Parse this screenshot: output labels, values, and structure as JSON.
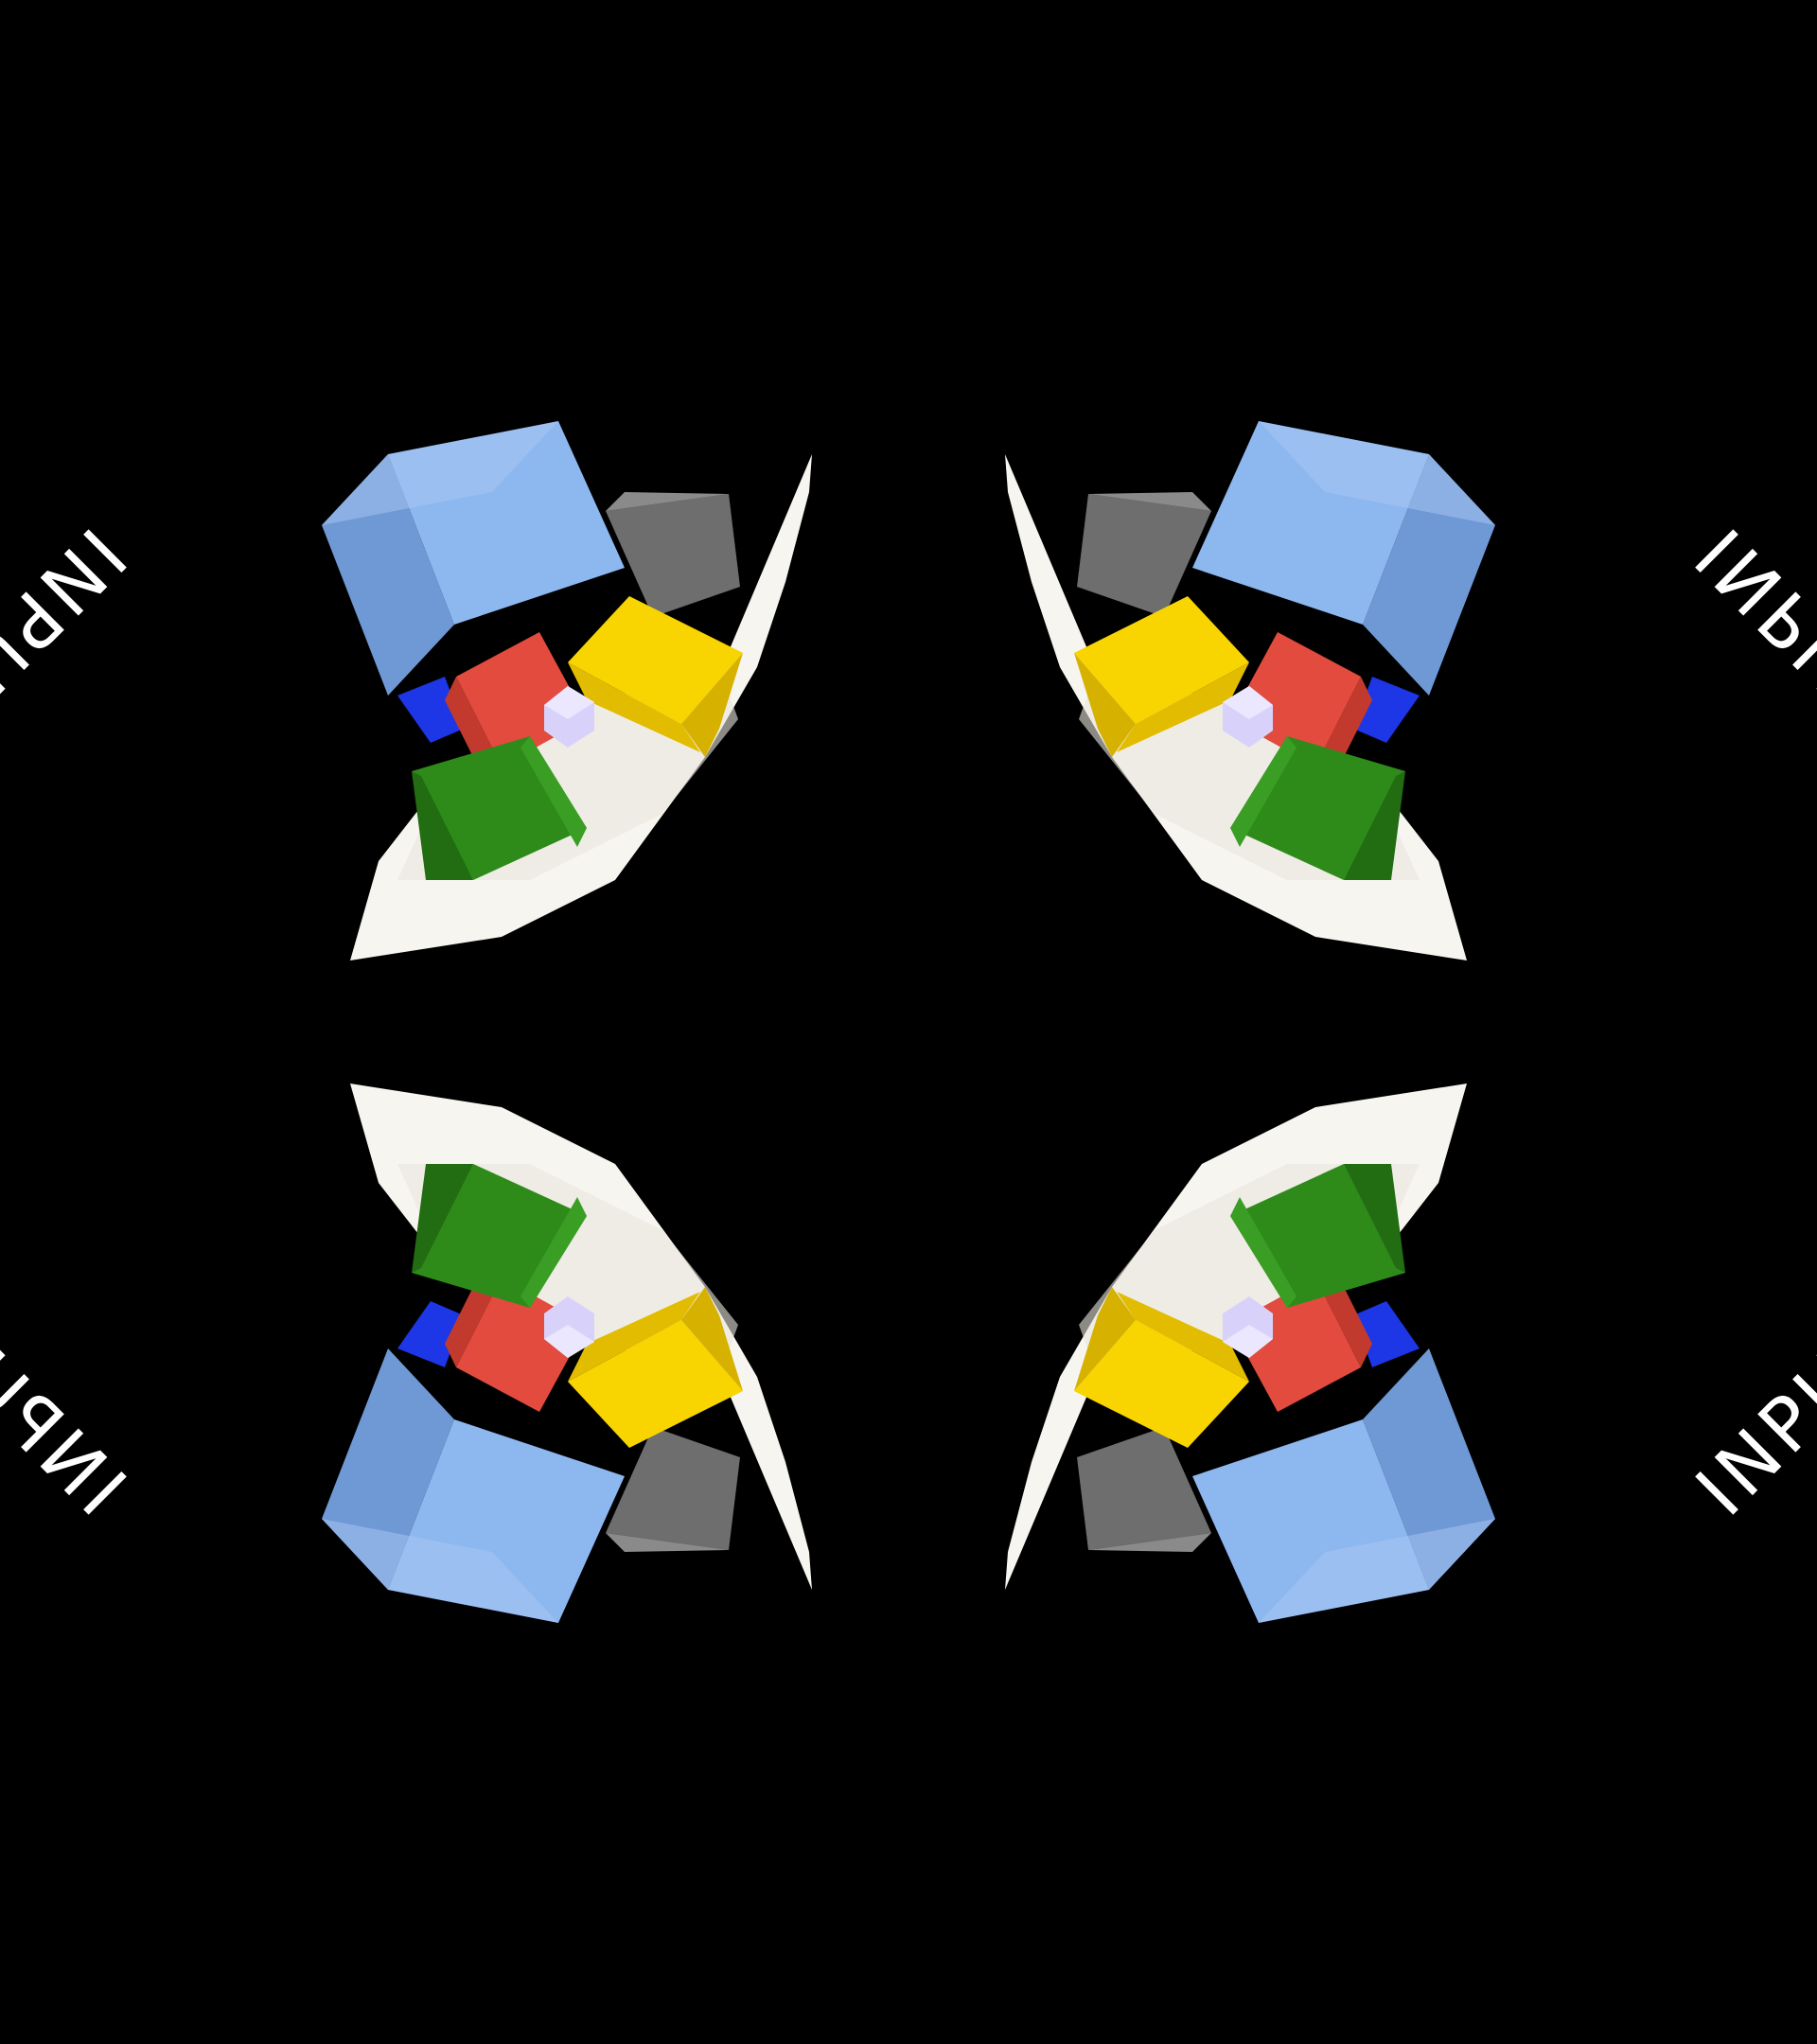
{
  "scene": {
    "background": "#000000",
    "labels": [
      {
        "id": "top-left",
        "text": "INPUT TEXT"
      },
      {
        "id": "top-right",
        "text": "INPUT TEXT"
      },
      {
        "id": "bottom-left",
        "text": "INPUT TEXT"
      },
      {
        "id": "bottom-right",
        "text": "INPUT TEXT"
      }
    ],
    "colors": {
      "paper": "#f7f5ef",
      "paper_shadow": "#d9d6cc",
      "light_blue_cube": "#7ea9e3",
      "gray_cube": "#666666",
      "yellow_cube": "#f2cd05",
      "red_cube": "#e24b3d",
      "green_cube": "#2e8b1a",
      "lavender_cube": "#cfc9f5",
      "blue_prism": "#1d36e6"
    }
  }
}
